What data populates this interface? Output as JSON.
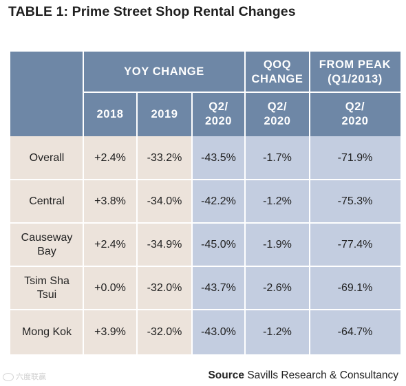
{
  "title": "TABLE 1: Prime Street Shop Rental Changes",
  "header": {
    "yoy": "YOY CHANGE",
    "qoq": "QOQ\nCHANGE",
    "peak": "FROM PEAK\n(Q1/2013)",
    "sub": [
      "2018",
      "2019",
      "Q2/\n2020",
      "Q2/\n2020",
      "Q2/\n2020"
    ]
  },
  "rows": [
    {
      "label": "Overall",
      "values": [
        "+2.4%",
        "-33.2%",
        "-43.5%",
        "-1.7%",
        "-71.9%"
      ]
    },
    {
      "label": "Central",
      "values": [
        "+3.8%",
        "-34.0%",
        "-42.2%",
        "-1.2%",
        "-75.3%"
      ]
    },
    {
      "label": "Causeway\nBay",
      "values": [
        "+2.4%",
        "-34.9%",
        "-45.0%",
        "-1.9%",
        "-77.4%"
      ]
    },
    {
      "label": "Tsim Sha\nTsui",
      "values": [
        "+0.0%",
        "-32.0%",
        "-43.7%",
        "-2.6%",
        "-69.1%"
      ]
    },
    {
      "label": "Mong Kok",
      "values": [
        "+3.9%",
        "-32.0%",
        "-43.0%",
        "-1.2%",
        "-64.7%"
      ]
    }
  ],
  "source": {
    "label": "Source",
    "text": "Savills Research & Consultancy"
  },
  "watermark": "六度联赢"
}
